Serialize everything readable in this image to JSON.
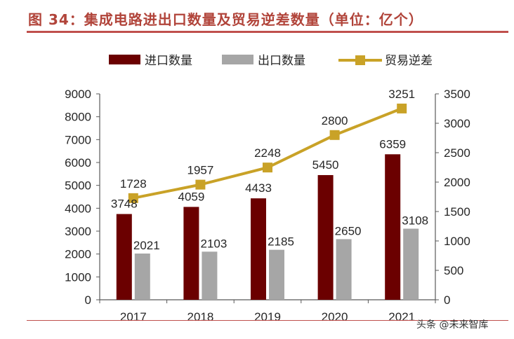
{
  "figure_title": "图 34：集成电路进出口数量及贸易逆差数量（单位：亿个）",
  "watermark": "头条 @未来智库",
  "chart_data": {
    "type": "bar",
    "categories": [
      "2017",
      "2018",
      "2019",
      "2020",
      "2021"
    ],
    "series": [
      {
        "name": "进口数量",
        "type": "bar",
        "axis": "left",
        "color": "#6b0000",
        "values": [
          3748,
          4059,
          4433,
          5450,
          6359
        ]
      },
      {
        "name": "出口数量",
        "type": "bar",
        "axis": "left",
        "color": "#a6a6a6",
        "values": [
          2021,
          2103,
          2185,
          2650,
          3108
        ]
      },
      {
        "name": "贸易逆差",
        "type": "line",
        "axis": "right",
        "color": "#c9a227",
        "values": [
          1728,
          1957,
          2248,
          2800,
          3251
        ]
      }
    ],
    "y_left": {
      "min": 0,
      "max": 9000,
      "ticks": [
        0,
        1000,
        2000,
        3000,
        4000,
        5000,
        6000,
        7000,
        8000,
        9000
      ]
    },
    "y_right": {
      "min": 0,
      "max": 3500,
      "ticks": [
        0,
        500,
        1000,
        1500,
        2000,
        2500,
        3000,
        3500
      ]
    },
    "grid": false,
    "legend": "top"
  }
}
